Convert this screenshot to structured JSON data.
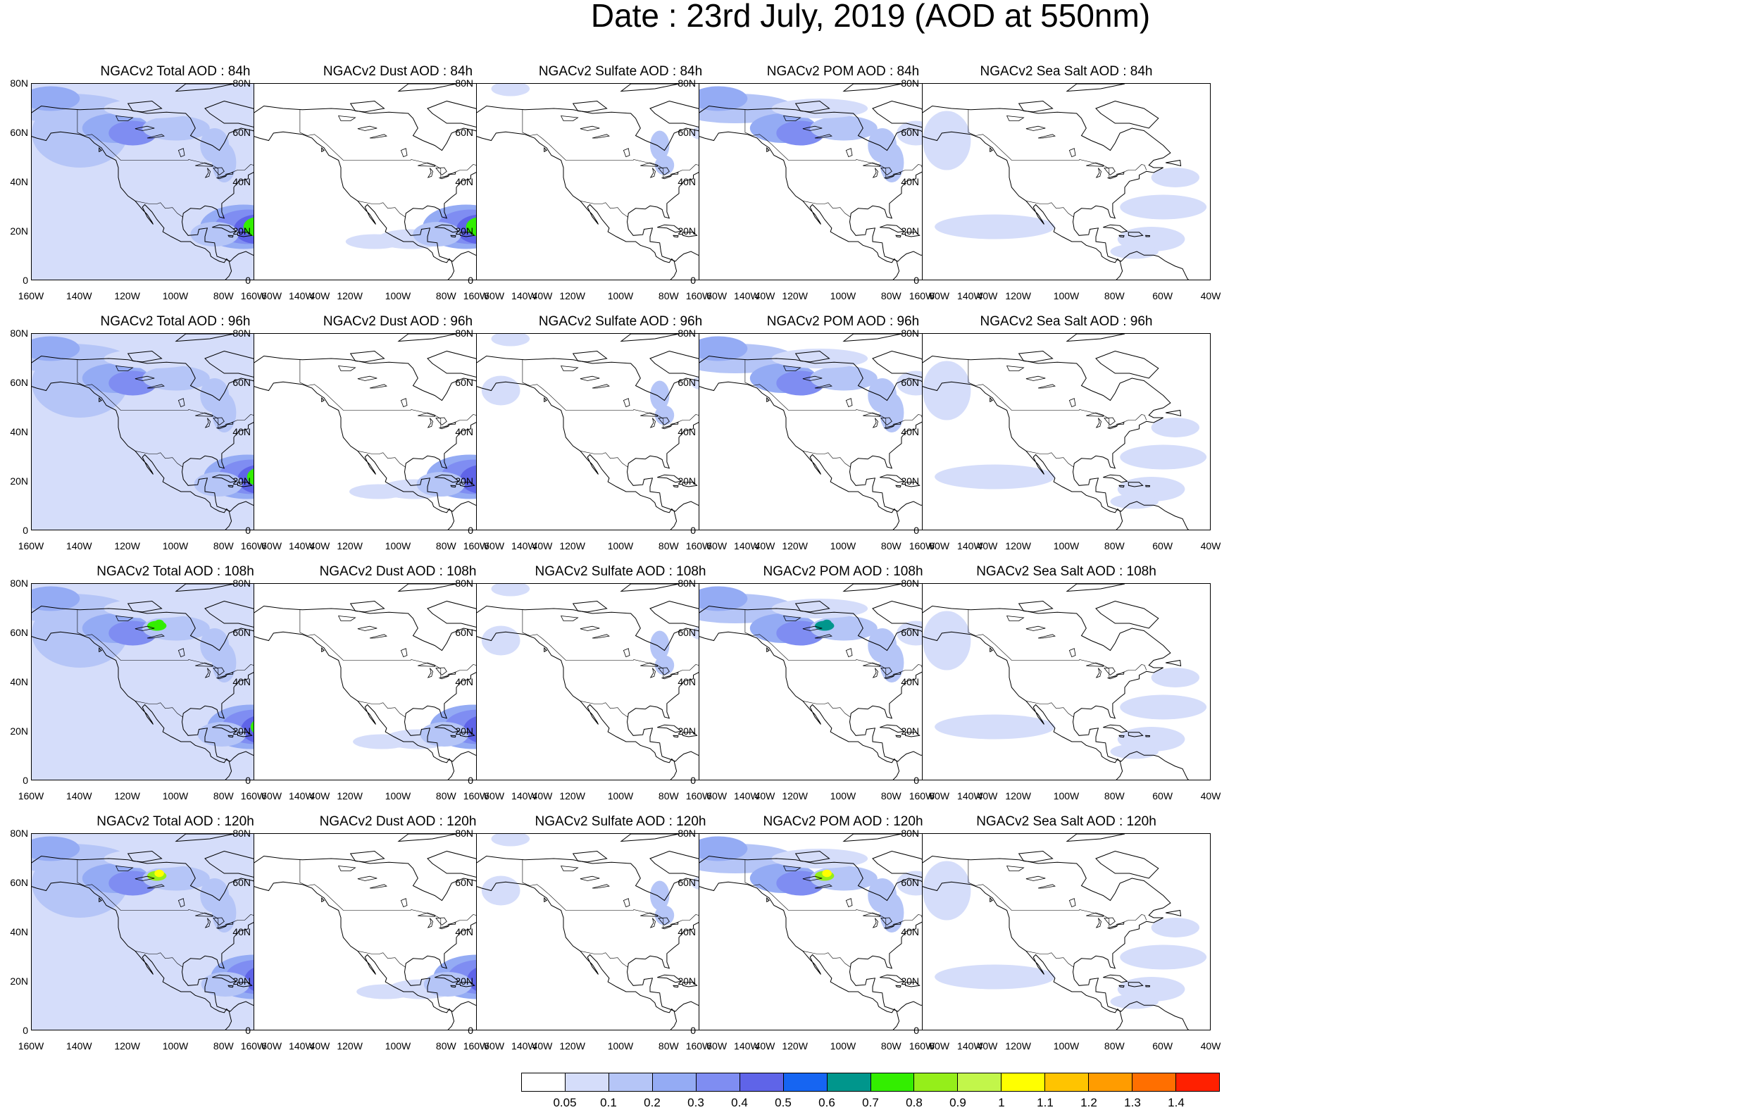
{
  "title": "Date : 23rd July, 2019 (AOD at 550nm)",
  "lat_labels": [
    "80N",
    "60N",
    "40N",
    "20N",
    "0"
  ],
  "lon_labels": [
    "160W",
    "140W",
    "120W",
    "100W",
    "80W",
    "60W",
    "40W"
  ],
  "panels": [
    {
      "title": "NGACv2 Total AOD : 84h",
      "species": "total",
      "lead_hours": 84
    },
    {
      "title": "NGACv2 Dust AOD : 84h",
      "species": "dust",
      "lead_hours": 84
    },
    {
      "title": "NGACv2 Sulfate AOD : 84h",
      "species": "sulfate",
      "lead_hours": 84
    },
    {
      "title": "NGACv2 POM AOD : 84h",
      "species": "pom",
      "lead_hours": 84
    },
    {
      "title": "NGACv2 Sea Salt AOD : 84h",
      "species": "seasalt",
      "lead_hours": 84
    },
    {
      "title": "NGACv2 Total AOD : 96h",
      "species": "total",
      "lead_hours": 96
    },
    {
      "title": "NGACv2 Dust AOD : 96h",
      "species": "dust",
      "lead_hours": 96
    },
    {
      "title": "NGACv2 Sulfate AOD : 96h",
      "species": "sulfate",
      "lead_hours": 96
    },
    {
      "title": "NGACv2 POM AOD : 96h",
      "species": "pom",
      "lead_hours": 96
    },
    {
      "title": "NGACv2 Sea Salt AOD : 96h",
      "species": "seasalt",
      "lead_hours": 96
    },
    {
      "title": "NGACv2 Total AOD : 108h",
      "species": "total",
      "lead_hours": 108
    },
    {
      "title": "NGACv2 Dust AOD : 108h",
      "species": "dust",
      "lead_hours": 108
    },
    {
      "title": "NGACv2 Sulfate AOD : 108h",
      "species": "sulfate",
      "lead_hours": 108
    },
    {
      "title": "NGACv2 POM AOD : 108h",
      "species": "pom",
      "lead_hours": 108
    },
    {
      "title": "NGACv2 Sea Salt AOD : 108h",
      "species": "seasalt",
      "lead_hours": 108
    },
    {
      "title": "NGACv2 Total AOD : 120h",
      "species": "total",
      "lead_hours": 120
    },
    {
      "title": "NGACv2 Dust AOD : 120h",
      "species": "dust",
      "lead_hours": 120
    },
    {
      "title": "NGACv2 Sulfate AOD : 120h",
      "species": "sulfate",
      "lead_hours": 120
    },
    {
      "title": "NGACv2 POM AOD : 120h",
      "species": "pom",
      "lead_hours": 120
    },
    {
      "title": "NGACv2 Sea Salt  AOD : 120h",
      "species": "seasalt",
      "lead_hours": 120
    }
  ],
  "colorbar": {
    "colors": [
      "#ffffff",
      "#d5ddfa",
      "#b5c5f7",
      "#94abf4",
      "#7f8df2",
      "#5f64e8",
      "#1665f2",
      "#00968c",
      "#33ee00",
      "#95ee1a",
      "#c2f64a",
      "#ffff00",
      "#ffc400",
      "#ff9c00",
      "#ff6f00",
      "#ff2000"
    ],
    "labels": [
      "0.05",
      "0.1",
      "0.2",
      "0.3",
      "0.4",
      "0.5",
      "0.6",
      "0.7",
      "0.8",
      "0.9",
      "1",
      "1.1",
      "1.2",
      "1.3",
      "1.4"
    ]
  }
}
